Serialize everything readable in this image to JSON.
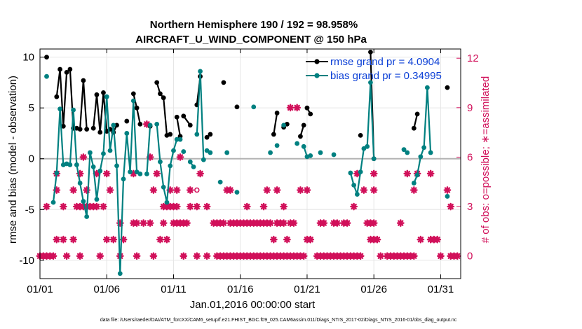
{
  "chart_data": {
    "type": "line",
    "title_line1": "Northern Hemisphere 190 / 192 = 98.958%",
    "title_line2": "AIRCRAFT_U_WIND_COMPONENT @ 150 hPa",
    "xlabel": "Jan.01,2016 00:00:00 start",
    "ylabel_left": "rmse and bias (model - observation)",
    "ylabel_right": "# of obs: o=possible; ∗=assimilated",
    "xlim": [
      1,
      32.5
    ],
    "ylim_left": [
      -11.8,
      10.8
    ],
    "ylim_right": [
      -1.37,
      12.56
    ],
    "x_ticks": [
      1,
      6,
      11,
      16,
      21,
      26,
      31
    ],
    "x_tick_labels": [
      "01/01",
      "01/06",
      "01/11",
      "01/16",
      "01/21",
      "01/26",
      "01/31"
    ],
    "y_ticks_left": [
      -10,
      -5,
      0,
      5,
      10
    ],
    "y_ticks_right": [
      0,
      3,
      6,
      9,
      12
    ],
    "grid": true,
    "legend_position": "top-right",
    "zero_line": true,
    "colors": {
      "rmse": "#000000",
      "bias": "#008080",
      "obs": "#d1105a",
      "axis": "#000000",
      "zero": "#b3b3b3",
      "legend_text": "#0b3fd6"
    },
    "series": [
      {
        "name": "rmse grand pr = 4.0904",
        "color": "#000000",
        "segments": [
          [
            [
              1.5,
              10.0
            ]
          ],
          [
            [
              2.25,
              6.1
            ],
            [
              2.5,
              8.8
            ],
            [
              2.75,
              3.2
            ],
            [
              3.0,
              8.5
            ],
            [
              3.25,
              8.8
            ],
            [
              3.5,
              3.0
            ],
            [
              3.75,
              3.0
            ],
            [
              4.0,
              2.9
            ],
            [
              4.25,
              7.7
            ],
            [
              4.5,
              2.9
            ]
          ],
          [
            [
              5.0,
              3.0
            ],
            [
              5.25,
              6.3
            ],
            [
              5.5,
              2.6
            ],
            [
              5.75,
              6.5
            ],
            [
              6.0,
              2.7
            ],
            [
              6.25,
              2.9
            ],
            [
              6.5,
              2.6
            ],
            [
              6.75,
              3.3
            ]
          ],
          [
            [
              7.5,
              3.7
            ]
          ],
          [
            [
              8.0,
              6.4
            ],
            [
              8.25,
              5.0
            ],
            [
              8.5,
              3.4
            ]
          ],
          [
            [
              9.25,
              3.2
            ]
          ],
          [
            [
              9.75,
              7.5
            ],
            [
              10.0,
              6.4
            ],
            [
              10.25,
              6.0
            ],
            [
              10.5,
              2.3
            ]
          ],
          [
            [
              10.75,
              2.4
            ]
          ],
          [
            [
              11.25,
              4.1
            ],
            [
              11.5,
              2.2
            ]
          ],
          [
            [
              11.75,
              4.2
            ],
            [
              12.25,
              3.3
            ]
          ],
          [
            [
              12.75,
              5.3
            ],
            [
              13.0,
              8.1
            ]
          ],
          [
            [
              13.5,
              2.1
            ]
          ],
          [
            [
              13.75,
              2.4
            ]
          ],
          [
            [
              14.75,
              7.5
            ]
          ],
          [
            [
              15.75,
              5.1
            ]
          ],
          [
            [
              18.5,
              2.4
            ],
            [
              18.75,
              4.5
            ]
          ],
          [
            [
              19.25,
              3.1
            ]
          ],
          [
            [
              19.5,
              3.4
            ]
          ],
          [
            [
              20.5,
              2.2
            ],
            [
              20.75,
              3.3
            ]
          ],
          [
            [
              21.0,
              5.0
            ],
            [
              21.25,
              4.4
            ]
          ],
          [
            [
              25.0,
              2.3
            ]
          ],
          [
            [
              25.75,
              10.5
            ],
            [
              26.0,
              0.0
            ]
          ],
          [
            [
              29.0,
              3.0
            ],
            [
              29.25,
              4.4
            ]
          ],
          [
            [
              31.5,
              7.0
            ]
          ]
        ]
      },
      {
        "name": "bias grand pr = 0.34995",
        "color": "#008080",
        "segments": [
          [
            [
              1.5,
              8.1
            ]
          ],
          [
            [
              2.0,
              -4.3
            ],
            [
              2.25,
              -1.4
            ],
            [
              2.5,
              4.9
            ],
            [
              2.75,
              -0.6
            ],
            [
              3.0,
              -0.5
            ],
            [
              3.25,
              -0.6
            ],
            [
              3.5,
              4.8
            ],
            [
              3.75,
              -0.6
            ],
            [
              4.0,
              -2.4
            ],
            [
              4.25,
              -4.2
            ],
            [
              4.5,
              -5.7
            ],
            [
              4.75,
              0.6
            ],
            [
              5.0,
              -0.8
            ],
            [
              5.25,
              -4.0
            ],
            [
              5.5,
              -1.2
            ],
            [
              5.75,
              0.5
            ],
            [
              6.0,
              6.1
            ],
            [
              6.25,
              0.8
            ],
            [
              6.5,
              3.3
            ],
            [
              6.75,
              -0.7
            ],
            [
              7.0,
              -11.3
            ],
            [
              7.25,
              -2.0
            ],
            [
              7.5,
              2.5
            ],
            [
              7.75,
              -1.3
            ],
            [
              8.0,
              5.7
            ],
            [
              8.25,
              -1.3
            ],
            [
              8.5,
              -1.5
            ]
          ],
          [
            [
              9.0,
              -1.5
            ],
            [
              9.25,
              3.3
            ]
          ],
          [
            [
              9.75,
              3.4
            ],
            [
              10.0,
              -0.3
            ],
            [
              10.25,
              -2.8
            ],
            [
              10.5,
              -4.3
            ],
            [
              10.75,
              -0.7
            ],
            [
              11.0,
              0.8
            ],
            [
              11.25,
              1.9
            ]
          ],
          [
            [
              11.5,
              1.9
            ]
          ],
          [
            [
              11.75,
              0.7
            ]
          ],
          [
            [
              12.25,
              -0.3
            ],
            [
              12.5,
              -0.8
            ]
          ],
          [
            [
              12.75,
              2.4
            ],
            [
              13.0,
              8.6
            ],
            [
              13.25,
              -0.1
            ]
          ],
          [
            [
              13.5,
              0.8
            ]
          ],
          [
            [
              13.75,
              0.6
            ]
          ],
          [
            [
              14.5,
              -2.3
            ]
          ],
          [
            [
              15.0,
              0.6
            ]
          ],
          [
            [
              15.75,
              -3.3
            ]
          ],
          [
            [
              17.0,
              5.1
            ]
          ],
          [
            [
              18.25,
              0.6
            ]
          ],
          [
            [
              18.75,
              1.3
            ]
          ],
          [
            [
              19.25,
              3.3
            ]
          ],
          [
            [
              20.25,
              1.5
            ]
          ],
          [
            [
              20.75,
              1.2
            ],
            [
              21.0,
              0.2
            ],
            [
              21.25,
              0.3
            ]
          ],
          [
            [
              22.0,
              0.6
            ]
          ],
          [
            [
              23.0,
              0.4
            ]
          ],
          [
            [
              24.25,
              -1.4
            ],
            [
              24.5,
              -2.6
            ],
            [
              24.75,
              -3.5
            ],
            [
              25.0,
              -1.3
            ],
            [
              25.25,
              1.0
            ],
            [
              25.5,
              1.2
            ],
            [
              25.75,
              7.5
            ],
            [
              26.0,
              0.0
            ]
          ],
          [
            [
              28.25,
              0.9
            ]
          ],
          [
            [
              28.5,
              0.6
            ]
          ],
          [
            [
              29.0,
              -2.4
            ],
            [
              29.25,
              -1.6
            ],
            [
              29.5,
              0.2
            ],
            [
              29.75,
              1.1
            ],
            [
              30.0,
              7.0
            ],
            [
              30.25,
              0.6
            ]
          ],
          [
            [
              31.5,
              -3.7
            ]
          ]
        ]
      }
    ],
    "obs_assimilated": [
      [
        1.0,
        0
      ],
      [
        1.25,
        0
      ],
      [
        1.5,
        0
      ],
      [
        1.75,
        0
      ],
      [
        2.0,
        0
      ],
      [
        3.0,
        0
      ],
      [
        4.0,
        0
      ],
      [
        5.5,
        0
      ],
      [
        7.0,
        0
      ],
      [
        8.25,
        0
      ],
      [
        9.5,
        0
      ],
      [
        11.75,
        0
      ],
      [
        12.75,
        0
      ],
      [
        13.5,
        0
      ],
      [
        14.25,
        0
      ],
      [
        14.5,
        0
      ],
      [
        14.75,
        0
      ],
      [
        15.0,
        0
      ],
      [
        15.25,
        0
      ],
      [
        15.5,
        0
      ],
      [
        15.75,
        0
      ],
      [
        16.0,
        0
      ],
      [
        16.25,
        0
      ],
      [
        16.5,
        0
      ],
      [
        16.75,
        0
      ],
      [
        17.0,
        0
      ],
      [
        17.25,
        0
      ],
      [
        17.5,
        0
      ],
      [
        17.75,
        0
      ],
      [
        18.0,
        0
      ],
      [
        18.25,
        0
      ],
      [
        18.5,
        0
      ],
      [
        18.75,
        0
      ],
      [
        19.0,
        0
      ],
      [
        19.25,
        0
      ],
      [
        19.5,
        0
      ],
      [
        19.75,
        0
      ],
      [
        20.0,
        0
      ],
      [
        20.25,
        0
      ],
      [
        20.5,
        0
      ],
      [
        20.75,
        0
      ],
      [
        21.75,
        0
      ],
      [
        22.0,
        0
      ],
      [
        22.25,
        0
      ],
      [
        22.5,
        0
      ],
      [
        22.75,
        0
      ],
      [
        23.0,
        0
      ],
      [
        23.25,
        0
      ],
      [
        23.5,
        0
      ],
      [
        23.75,
        0
      ],
      [
        24.0,
        0
      ],
      [
        24.25,
        0
      ],
      [
        24.5,
        0
      ],
      [
        24.75,
        0
      ],
      [
        25.0,
        0
      ],
      [
        26.5,
        0
      ],
      [
        27.0,
        0
      ],
      [
        27.25,
        0
      ],
      [
        27.5,
        0
      ],
      [
        27.75,
        0
      ],
      [
        28.0,
        0
      ],
      [
        28.25,
        0
      ],
      [
        28.5,
        0
      ],
      [
        28.75,
        0
      ],
      [
        29.0,
        0
      ],
      [
        31.0,
        0
      ],
      [
        31.75,
        0
      ],
      [
        32.0,
        0
      ],
      [
        32.25,
        0
      ],
      [
        2.25,
        1
      ],
      [
        2.75,
        1
      ],
      [
        3.5,
        1
      ],
      [
        6.0,
        1
      ],
      [
        6.5,
        1
      ],
      [
        7.25,
        1
      ],
      [
        10.0,
        1
      ],
      [
        10.5,
        1
      ],
      [
        18.5,
        1
      ],
      [
        19.5,
        1
      ],
      [
        21.0,
        1
      ],
      [
        21.25,
        1
      ],
      [
        25.75,
        1
      ],
      [
        26.0,
        1
      ],
      [
        26.25,
        1
      ],
      [
        29.5,
        1
      ],
      [
        30.25,
        1
      ],
      [
        30.5,
        1
      ],
      [
        30.75,
        1
      ],
      [
        7.0,
        2
      ],
      [
        8.0,
        2
      ],
      [
        8.25,
        2
      ],
      [
        8.75,
        2
      ],
      [
        9.25,
        2
      ],
      [
        10.25,
        2
      ],
      [
        11.0,
        2
      ],
      [
        11.25,
        2
      ],
      [
        11.5,
        2
      ],
      [
        11.75,
        2
      ],
      [
        12.0,
        2
      ],
      [
        14.0,
        2
      ],
      [
        14.25,
        2
      ],
      [
        14.5,
        2
      ],
      [
        14.75,
        2
      ],
      [
        15.25,
        2
      ],
      [
        15.5,
        2
      ],
      [
        15.75,
        2
      ],
      [
        16.0,
        2
      ],
      [
        16.25,
        2
      ],
      [
        16.5,
        2
      ],
      [
        16.75,
        2
      ],
      [
        17.0,
        2
      ],
      [
        17.25,
        2
      ],
      [
        17.5,
        2
      ],
      [
        17.75,
        2
      ],
      [
        18.0,
        2
      ],
      [
        18.25,
        2
      ],
      [
        18.75,
        2
      ],
      [
        19.0,
        2
      ],
      [
        19.25,
        2
      ],
      [
        19.75,
        2
      ],
      [
        20.0,
        2
      ],
      [
        22.0,
        2
      ],
      [
        22.25,
        2
      ],
      [
        23.0,
        2
      ],
      [
        23.25,
        2
      ],
      [
        23.75,
        2
      ],
      [
        24.0,
        2
      ],
      [
        25.5,
        2
      ],
      [
        25.75,
        2
      ],
      [
        26.0,
        2
      ],
      [
        28.0,
        2
      ],
      [
        1.5,
        3
      ],
      [
        2.75,
        3
      ],
      [
        3.75,
        3
      ],
      [
        4.0,
        3
      ],
      [
        4.25,
        3
      ],
      [
        4.5,
        3
      ],
      [
        4.75,
        3
      ],
      [
        5.0,
        3
      ],
      [
        5.25,
        3
      ],
      [
        5.75,
        3
      ],
      [
        10.25,
        3
      ],
      [
        10.5,
        3
      ],
      [
        10.75,
        3
      ],
      [
        11.0,
        3
      ],
      [
        11.25,
        3
      ],
      [
        12.25,
        3
      ],
      [
        12.75,
        3
      ],
      [
        13.5,
        3
      ],
      [
        16.5,
        3
      ],
      [
        17.75,
        3
      ],
      [
        19.25,
        3
      ],
      [
        24.5,
        3
      ],
      [
        31.75,
        3
      ],
      [
        2.25,
        4
      ],
      [
        3.5,
        4
      ],
      [
        4.5,
        4
      ],
      [
        6.25,
        4
      ],
      [
        9.5,
        4
      ],
      [
        10.75,
        4
      ],
      [
        11.25,
        4
      ],
      [
        12.25,
        4
      ],
      [
        15.0,
        4
      ],
      [
        15.25,
        4
      ],
      [
        18.0,
        4
      ],
      [
        18.75,
        4
      ],
      [
        20.5,
        4
      ],
      [
        21.0,
        4
      ],
      [
        25.25,
        4
      ],
      [
        26.0,
        4
      ],
      [
        29.0,
        4
      ],
      [
        31.5,
        4
      ],
      [
        2.25,
        5
      ],
      [
        4.0,
        5
      ],
      [
        5.25,
        5
      ],
      [
        6.0,
        5
      ],
      [
        8.0,
        5
      ],
      [
        9.75,
        5
      ],
      [
        13.0,
        5
      ],
      [
        24.75,
        5
      ],
      [
        26.0,
        5
      ],
      [
        28.5,
        5
      ],
      [
        29.25,
        5
      ],
      [
        30.25,
        5
      ],
      [
        4.25,
        6
      ],
      [
        9.25,
        6
      ],
      [
        11.5,
        6
      ],
      [
        9.0,
        8
      ],
      [
        19.75,
        9
      ],
      [
        20.25,
        9
      ]
    ],
    "obs_possible": [
      [
        12.75,
        4
      ]
    ],
    "legend": {
      "rmse": "rmse grand pr = 4.0904",
      "bias": "bias grand pr = 0.34995"
    }
  },
  "footer": "data file: /Users/raeder/DAI/ATM_forcXX/CAM6_setup/f.e21.FHIST_BGC.f09_025.CAM6assim.011/Diags_NTrS_2017-02/Diags_NTrS_2016-01/obs_diag_output.nc"
}
